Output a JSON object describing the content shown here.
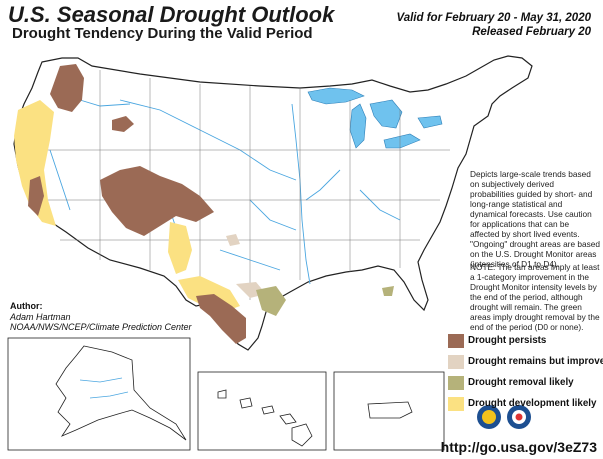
{
  "header": {
    "title": "U.S. Seasonal Drought Outlook",
    "subtitle": "Drought Tendency During the Valid Period",
    "valid_line": "Valid for February 20 - May 31, 2020",
    "released_line": "Released February 20"
  },
  "notes": {
    "description": "Depicts large-scale trends based on subjectively derived probabilities guided by short- and long-range statistical and dynamical forecasts. Use caution for applications that can be affected by short lived events. \"Ongoing\" drought areas are based on the U.S. Drought Monitor areas (intensities of D1 to D4).",
    "note": "NOTE: The tan areas imply at least a 1-category improvement in the Drought Monitor intensity levels by the end of the period, although drought will remain. The green areas imply drought removal by the end of the period (D0 or none)."
  },
  "author": {
    "label": "Author:",
    "name": "Adam Hartman",
    "org": "NOAA/NWS/NCEP/Climate Prediction Center"
  },
  "legend": [
    {
      "label": "Drought persists",
      "color": "#9b6a55"
    },
    {
      "label": "Drought remains but improves",
      "color": "#e2d3c2"
    },
    {
      "label": "Drought removal likely",
      "color": "#b5b27a"
    },
    {
      "label": "Drought development likely",
      "color": "#fbe182"
    }
  ],
  "url": "http://go.usa.gov/3eZ73",
  "colors": {
    "water": "#6fc2ee",
    "rivers": "#4aa6e0",
    "borders": "#222222"
  }
}
